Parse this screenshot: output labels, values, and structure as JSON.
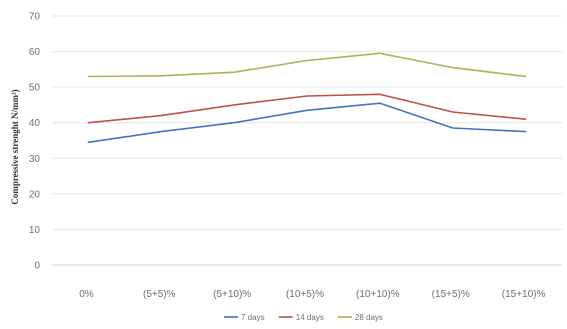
{
  "chart_data": {
    "type": "line",
    "title": "",
    "xlabel": "",
    "ylabel": "Compressive strenght N/mm²)",
    "categories": [
      "0%",
      "(5+5)%",
      "(5+10)%",
      "(10+5)%",
      "(10+10)%",
      "(15+5)%",
      "(15+10)%"
    ],
    "ylim": [
      0,
      70
    ],
    "yticks": [
      0,
      10,
      20,
      30,
      40,
      50,
      60,
      70
    ],
    "grid": true,
    "legend_position": "bottom",
    "series": [
      {
        "name": "7 days",
        "color": "#4472c4",
        "values": [
          34.5,
          37.5,
          40,
          43.5,
          45.5,
          38.5,
          37.5
        ]
      },
      {
        "name": "14 days",
        "color": "#c0504d",
        "values": [
          40,
          42,
          45,
          47.5,
          48,
          43,
          41
        ]
      },
      {
        "name": "28 days",
        "color": "#9bbb59",
        "values": [
          53,
          53.2,
          54.2,
          57.5,
          59.5,
          55.5,
          53
        ]
      }
    ]
  }
}
